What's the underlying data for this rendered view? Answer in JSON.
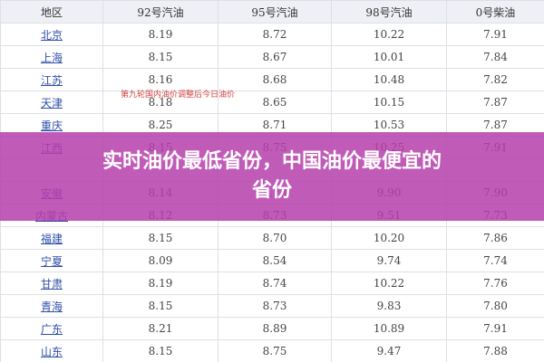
{
  "table": {
    "columns": [
      "地区",
      "92号汽油",
      "95号汽油",
      "98号汽油",
      "0号柴油"
    ],
    "rows": [
      [
        "北京",
        "8.19",
        "8.72",
        "10.22",
        "7.91"
      ],
      [
        "上海",
        "8.15",
        "8.67",
        "10.01",
        "7.84"
      ],
      [
        "江苏",
        "8.16",
        "8.68",
        "10.48",
        "7.82"
      ],
      [
        "天津",
        "8.18",
        "8.65",
        "10.15",
        "7.87"
      ],
      [
        "重庆",
        "8.25",
        "8.71",
        "10.53",
        "7.87"
      ],
      [
        "江西",
        "8.15",
        "8.75",
        "10.25",
        "7.91"
      ],
      [
        "安徽",
        "8.14",
        "8.73",
        "9.90",
        "7.90"
      ],
      [
        "内蒙古",
        "8.12",
        "8.73",
        "9.51",
        "7.73"
      ],
      [
        "福建",
        "8.15",
        "8.70",
        "10.20",
        "7.86"
      ],
      [
        "宁夏",
        "8.09",
        "8.54",
        "9.74",
        "7.74"
      ],
      [
        "甘肃",
        "8.19",
        "8.74",
        "10.22",
        "7.76"
      ],
      [
        "青海",
        "8.15",
        "8.73",
        "9.83",
        "7.80"
      ],
      [
        "广东",
        "8.21",
        "8.89",
        "10.89",
        "7.91"
      ],
      [
        "山东",
        "8.15",
        "8.75",
        "9.47",
        "7.88"
      ]
    ]
  },
  "annotation": "第九轮国内油价调整后今日油价",
  "banner": {
    "line1": "实时油价最低省份，中国油价最便宜的",
    "line2": "省份"
  }
}
